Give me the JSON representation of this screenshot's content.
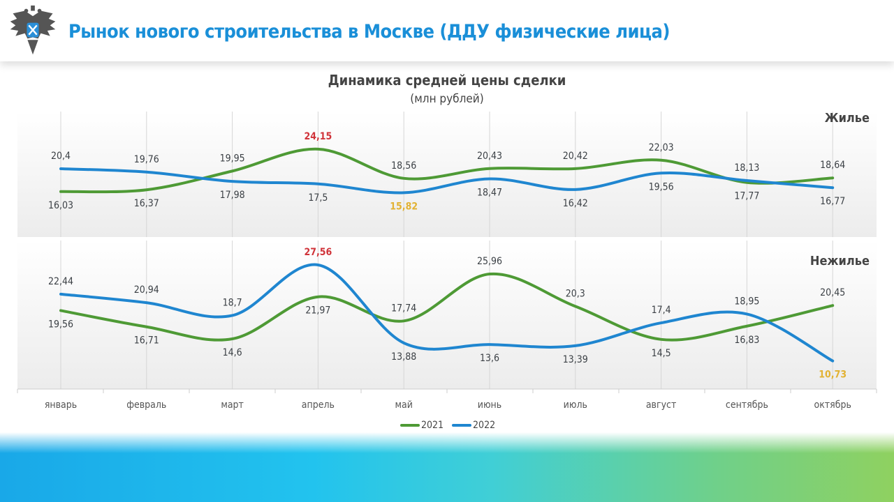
{
  "header": {
    "title": "Рынок нового строительства в Москве (ДДУ физические лица)"
  },
  "chart_data": [
    {
      "type": "line",
      "title": "Динамика средней цены сделки",
      "subtitle": "(млн рублей)",
      "panel_label": "Жилье",
      "categories": [
        "январь",
        "февраль",
        "март",
        "апрель",
        "май",
        "июнь",
        "июль",
        "август",
        "сентябрь",
        "октябрь"
      ],
      "series": [
        {
          "name": "2021",
          "color": "#4e9a35",
          "values": [
            16.03,
            16.37,
            19.95,
            24.15,
            18.56,
            20.43,
            20.42,
            22.03,
            17.77,
            18.64
          ],
          "labels": [
            "16,03",
            "16,37",
            "19,95",
            "24,15",
            "18,56",
            "20,43",
            "20,42",
            "22,03",
            "17,77",
            "18,64"
          ]
        },
        {
          "name": "2022",
          "color": "#1f86d0",
          "values": [
            20.4,
            19.76,
            17.98,
            17.5,
            15.82,
            18.47,
            16.42,
            19.56,
            18.13,
            16.77
          ],
          "labels": [
            "20,4",
            "19,76",
            "17,98",
            "17,5",
            "15,82",
            "18,47",
            "16,42",
            "19,56",
            "18,13",
            "16,77"
          ]
        }
      ],
      "grid": "vertical",
      "highlight_colors": {
        "max": "#d0343a",
        "min": "#e2b233",
        "default": "#3a3f44"
      }
    },
    {
      "type": "line",
      "panel_label": "Нежилье",
      "categories": [
        "январь",
        "февраль",
        "март",
        "апрель",
        "май",
        "июнь",
        "июль",
        "август",
        "сентябрь",
        "октябрь"
      ],
      "series": [
        {
          "name": "2021",
          "color": "#4e9a35",
          "values": [
            19.56,
            16.71,
            14.6,
            21.97,
            17.74,
            25.96,
            20.3,
            14.5,
            16.83,
            20.45
          ],
          "labels": [
            "19,56",
            "16,71",
            "14,6",
            "21,97",
            "17,74",
            "25,96",
            "20,3",
            "14,5",
            "16,83",
            "20,45"
          ]
        },
        {
          "name": "2022",
          "color": "#1f86d0",
          "values": [
            22.44,
            20.94,
            18.7,
            27.56,
            13.88,
            13.6,
            13.39,
            17.4,
            18.95,
            10.73
          ],
          "labels": [
            "22,44",
            "20,94",
            "18,7",
            "27,56",
            "13,88",
            "13,6",
            "13,39",
            "17,4",
            "18,95",
            "10,73"
          ]
        }
      ],
      "grid": "vertical",
      "legend": "bottom-center"
    }
  ]
}
